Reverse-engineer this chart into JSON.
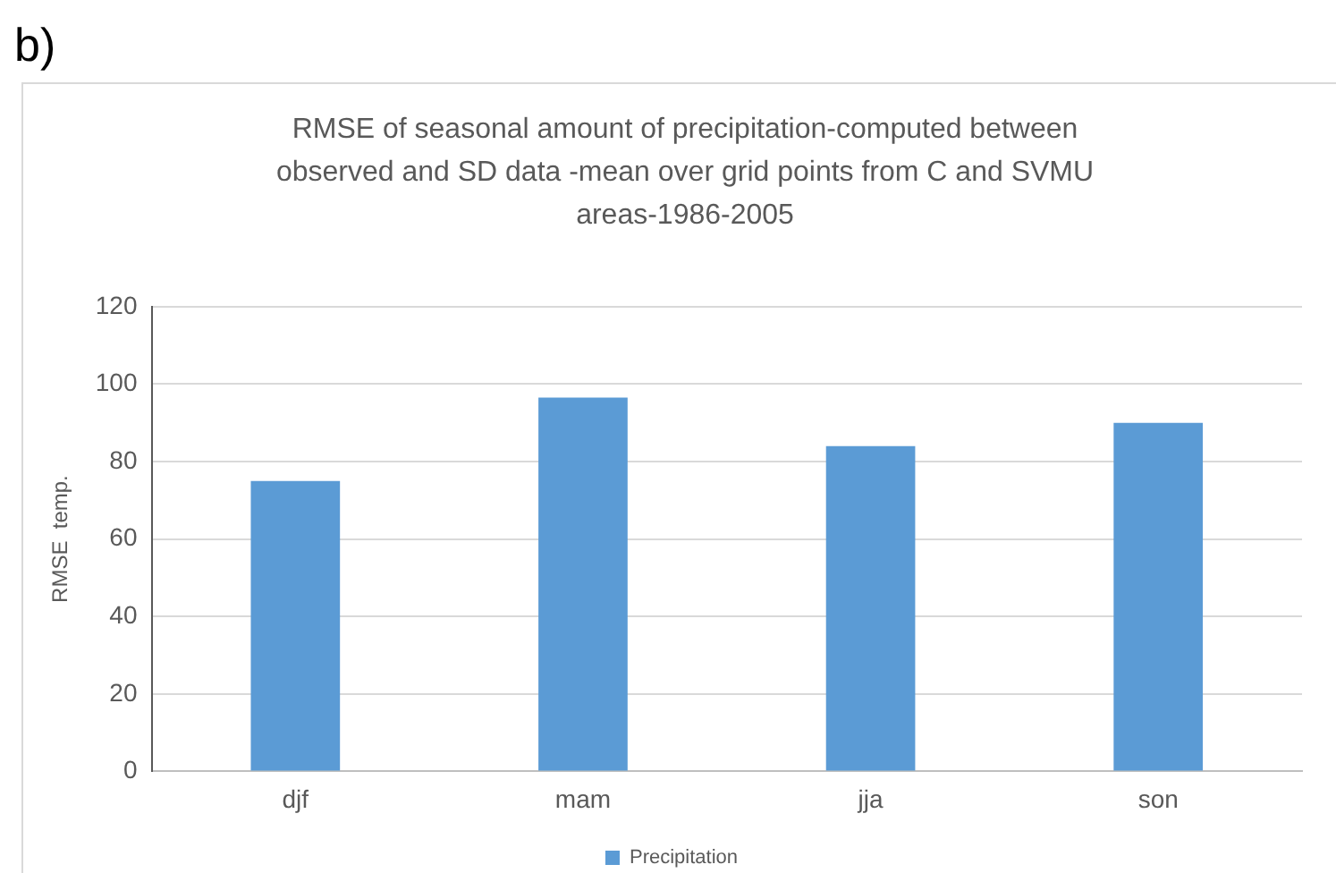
{
  "chart_data": {
    "type": "bar",
    "title": "RMSE of seasonal amount of precipitation-computed between observed and SD data -mean over grid points from C and SVMU areas-1986-2005",
    "ylabel": "RMSE  temp.",
    "annotations": [
      "b)"
    ],
    "categories": [
      "djf",
      "mam",
      "jja",
      "son"
    ],
    "series": [
      {
        "name": "Precipitation",
        "color": "#5b9bd5",
        "values": [
          75,
          96.5,
          84,
          90
        ]
      }
    ],
    "ylim": [
      0,
      120
    ],
    "yticks": [
      0,
      20,
      40,
      60,
      80,
      100,
      120
    ],
    "grid": "y",
    "legend": "bottom"
  }
}
